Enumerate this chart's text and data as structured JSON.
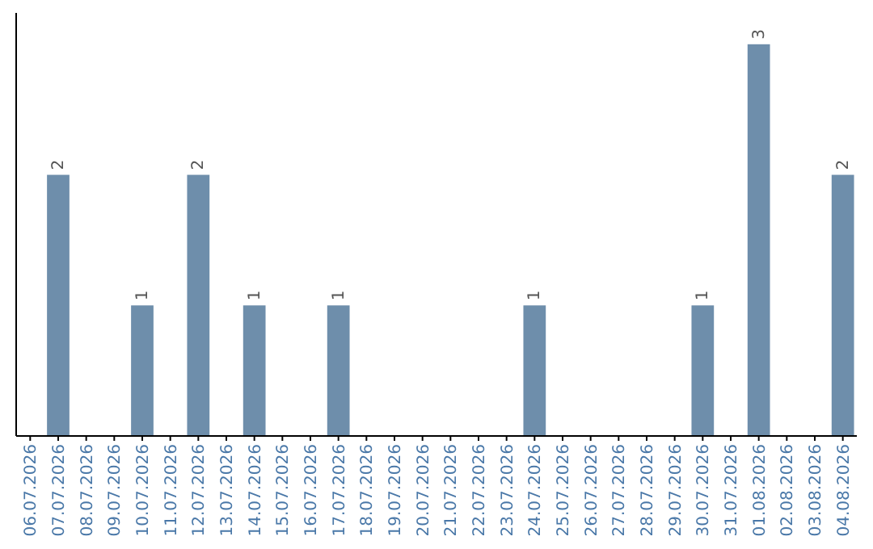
{
  "chart_data": {
    "type": "bar",
    "categories": [
      "06.07.2026",
      "07.07.2026",
      "08.07.2026",
      "09.07.2026",
      "10.07.2026",
      "11.07.2026",
      "12.07.2026",
      "13.07.2026",
      "14.07.2026",
      "15.07.2026",
      "16.07.2026",
      "17.07.2026",
      "18.07.2026",
      "19.07.2026",
      "20.07.2026",
      "21.07.2026",
      "22.07.2026",
      "23.07.2026",
      "24.07.2026",
      "25.07.2026",
      "26.07.2026",
      "27.07.2026",
      "28.07.2026",
      "29.07.2026",
      "30.07.2026",
      "31.07.2026",
      "01.08.2026",
      "02.08.2026",
      "03.08.2026",
      "04.08.2026"
    ],
    "values": [
      0,
      2,
      0,
      0,
      1,
      0,
      2,
      0,
      1,
      0,
      0,
      1,
      0,
      0,
      0,
      0,
      0,
      0,
      1,
      0,
      0,
      0,
      0,
      0,
      1,
      0,
      3,
      0,
      0,
      2
    ],
    "value_labels": [
      null,
      "2",
      null,
      null,
      "1",
      null,
      "2",
      null,
      "1",
      null,
      null,
      "1",
      null,
      null,
      null,
      null,
      null,
      null,
      "1",
      null,
      null,
      null,
      null,
      null,
      "1",
      null,
      "3",
      null,
      null,
      "2"
    ],
    "color": "#6e8eab"
  }
}
